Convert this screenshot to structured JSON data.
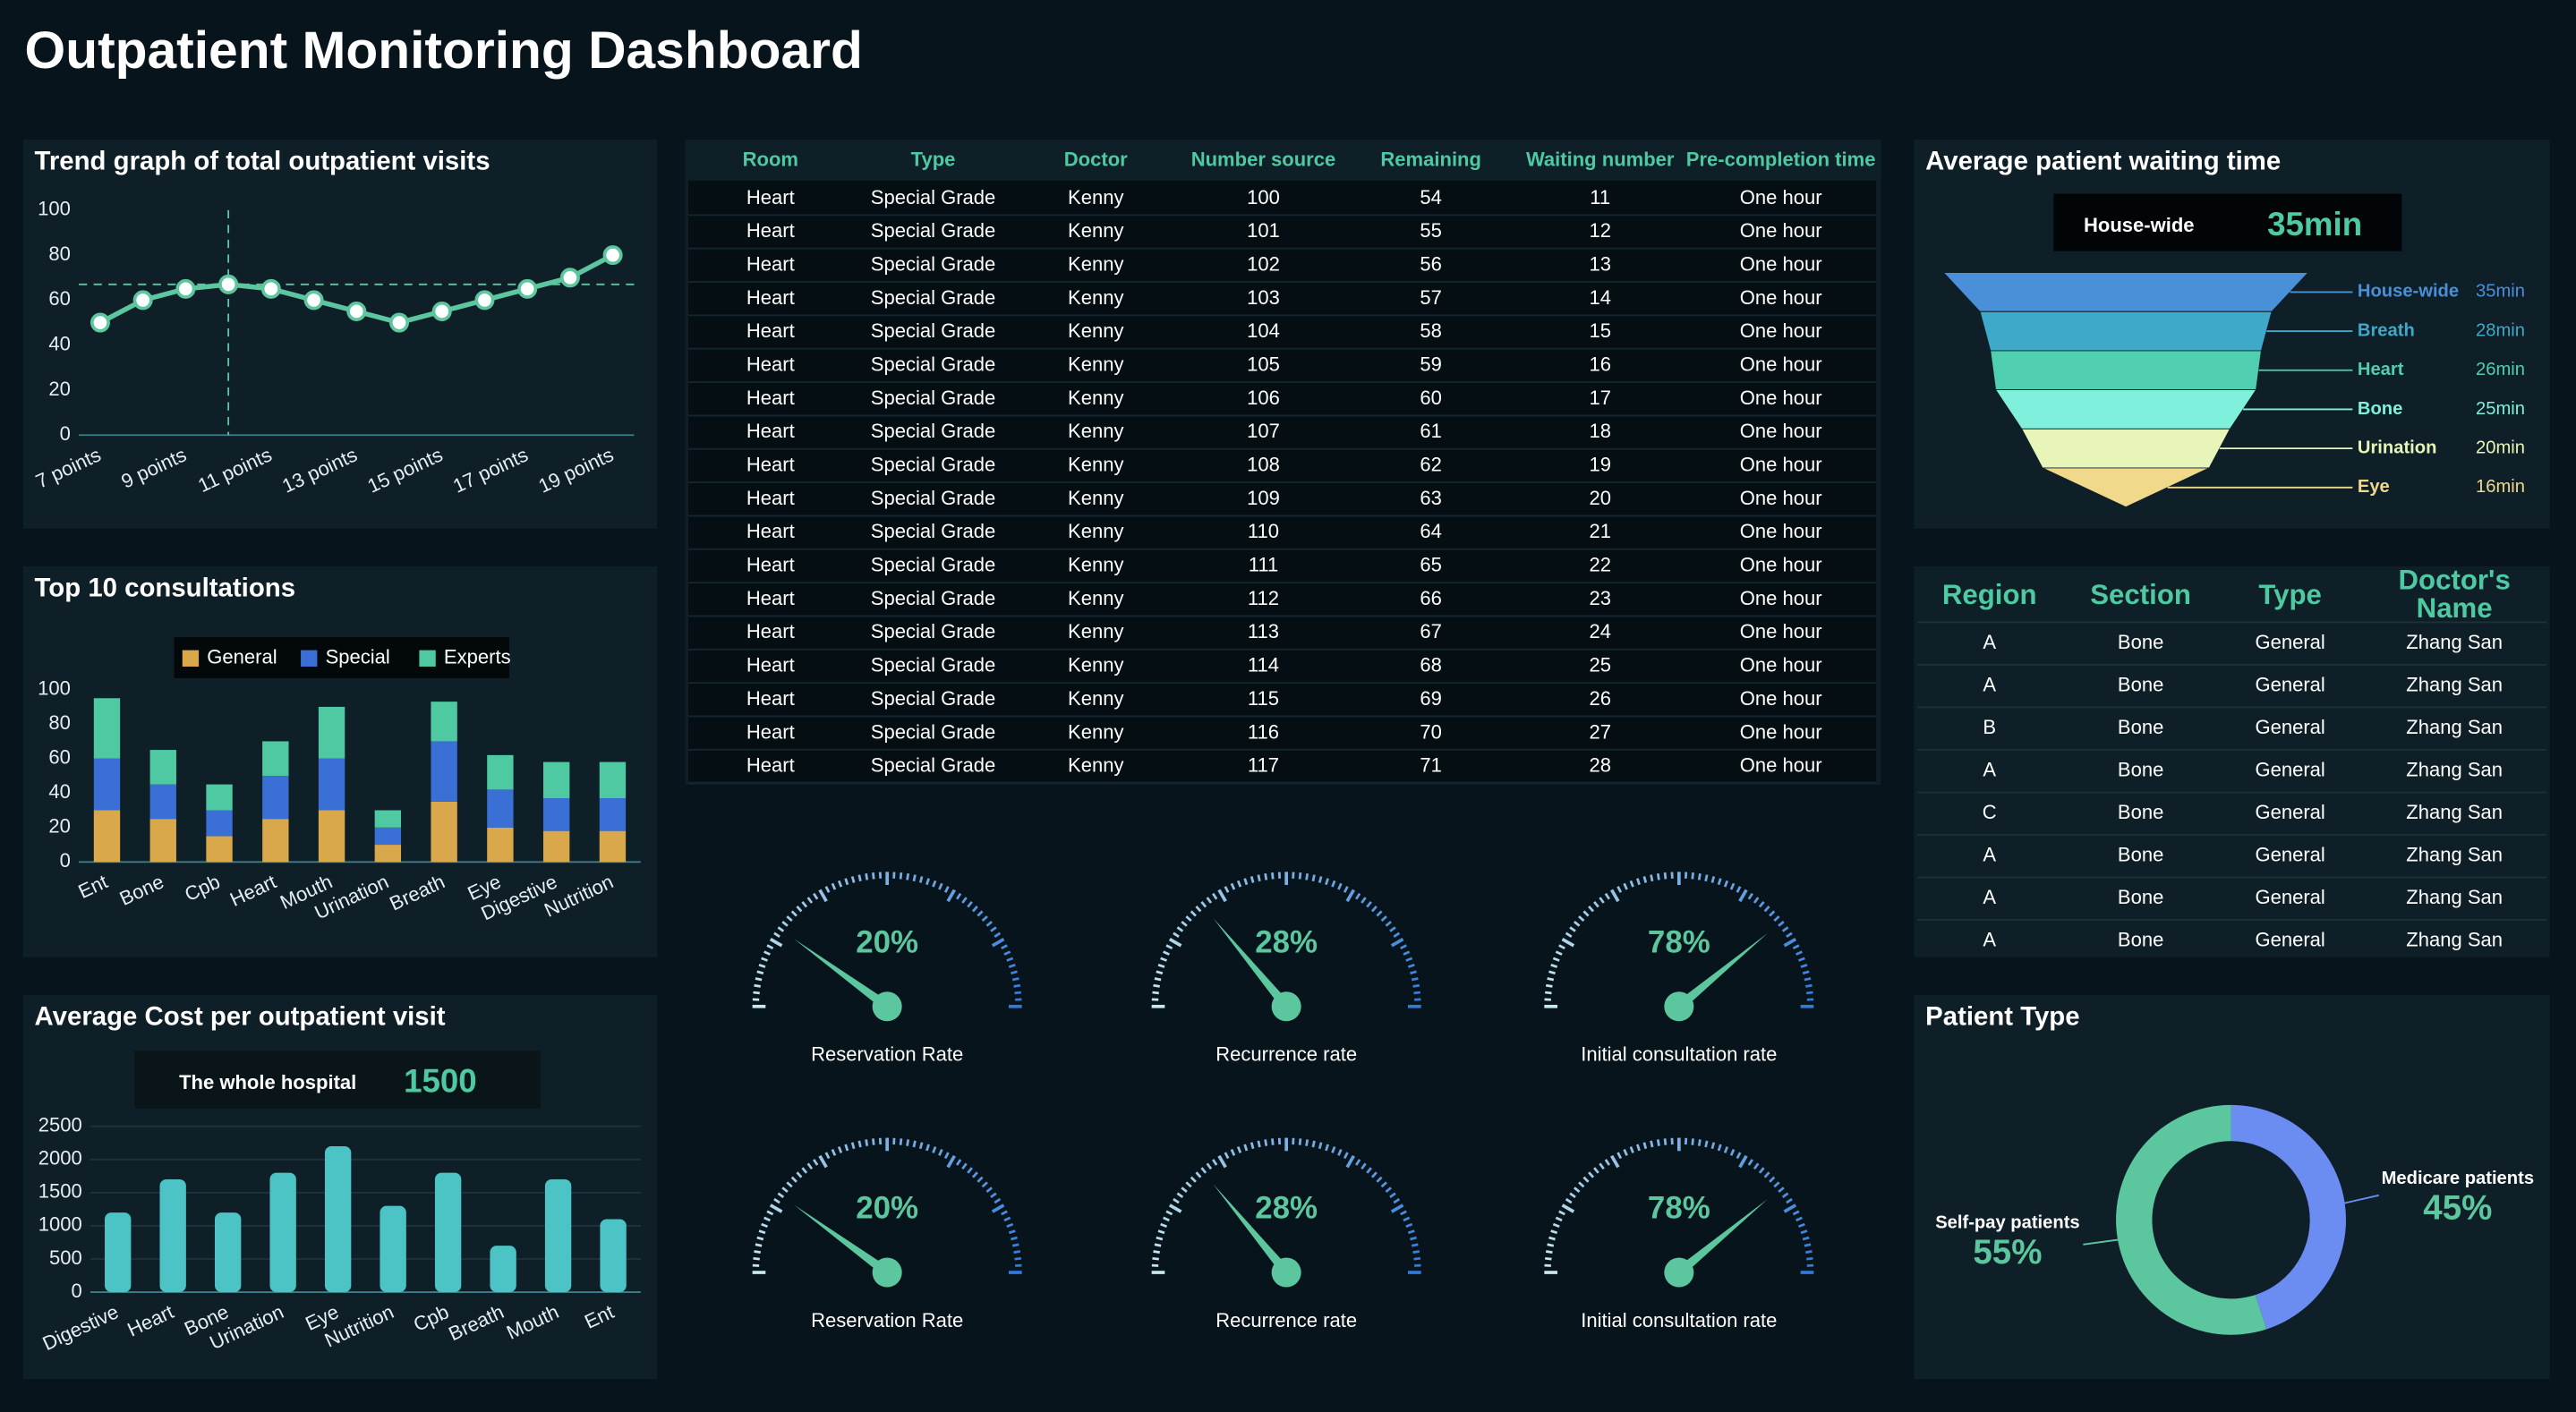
{
  "title": "Outpatient Monitoring Dashboard",
  "chart_data": [
    {
      "type": "line",
      "title": "Trend graph of total outpatient visits",
      "categories": [
        "7 points",
        null,
        "9 points",
        null,
        "11 points",
        null,
        "13 points",
        null,
        "15 points",
        null,
        "17 points",
        null,
        "19 points"
      ],
      "values": [
        50,
        60,
        65,
        67,
        65,
        60,
        55,
        50,
        55,
        60,
        65,
        70,
        80
      ],
      "color": "#5cc79e",
      "ylim": [
        0,
        100
      ],
      "yticks": [
        0,
        20,
        40,
        60,
        80,
        100
      ],
      "crosshair_index": 3
    },
    {
      "type": "stacked_bar",
      "title": "Top 10 consultations",
      "categories": [
        "Ent",
        "Bone",
        "Cpb",
        "Heart",
        "Mouth",
        "Urination",
        "Breath",
        "Eye",
        "Digestive",
        "Nutrition"
      ],
      "series": [
        {
          "name": "General",
          "color": "#d9a84a",
          "values": [
            30,
            25,
            15,
            25,
            30,
            10,
            35,
            20,
            18,
            18
          ]
        },
        {
          "name": "Special",
          "color": "#3a6fd6",
          "values": [
            30,
            20,
            15,
            25,
            30,
            10,
            35,
            22,
            19,
            19
          ]
        },
        {
          "name": "Experts",
          "color": "#4fc9a1",
          "values": [
            35,
            20,
            15,
            20,
            30,
            10,
            23,
            20,
            21,
            21
          ]
        }
      ],
      "ylim": [
        0,
        100
      ],
      "yticks": [
        0,
        20,
        40,
        60,
        80,
        100
      ],
      "legend": "top"
    },
    {
      "type": "bar",
      "title": "Average Cost per outpatient visit",
      "summary": {
        "label": "The whole hospital",
        "value": 1500
      },
      "categories": [
        "Digestive",
        "Heart",
        "Bone",
        "Urination",
        "Eye",
        "Nutrition",
        "Cpb",
        "Breath",
        "Mouth",
        "Ent"
      ],
      "values": [
        1200,
        1700,
        1200,
        1800,
        2200,
        1300,
        1800,
        700,
        1700,
        1100
      ],
      "color": "#4cc3c4",
      "ylim": [
        0,
        2500
      ],
      "yticks": [
        0,
        500,
        1000,
        1500,
        2000,
        2500
      ],
      "grid": true
    },
    {
      "type": "funnel",
      "title": "Average patient waiting time",
      "summary": {
        "label": "House-wide",
        "value": "35min"
      },
      "categories": [
        "House-wide",
        "Breath",
        "Heart",
        "Bone",
        "Urination",
        "Eye"
      ],
      "values": [
        35,
        28,
        26,
        25,
        20,
        16
      ],
      "value_labels": [
        "35min",
        "28min",
        "26min",
        "25min",
        "20min",
        "16min"
      ],
      "colors": [
        "#4a90d9",
        "#3fa9c9",
        "#4fcfb0",
        "#7ff0dc",
        "#e8f5b8",
        "#f0d98a"
      ]
    },
    {
      "type": "gauge",
      "range": [
        0,
        100
      ],
      "categories": [
        "Reservation Rate",
        "Recurrence rate",
        "Initial consultation rate",
        "Reservation Rate",
        "Recurrence rate",
        "Initial consultation rate"
      ],
      "values": [
        20,
        28,
        78,
        20,
        28,
        78
      ],
      "value_labels": [
        "20%",
        "28%",
        "78%",
        "20%",
        "28%",
        "78%"
      ],
      "color": "#5cc79e"
    },
    {
      "type": "donut",
      "title": "Patient Type",
      "categories": [
        "Medicare patients",
        "Self-pay patients"
      ],
      "values": [
        45,
        55
      ],
      "value_labels": [
        "45%",
        "55%"
      ],
      "colors": [
        "#6b8cf0",
        "#5cc79e"
      ]
    }
  ],
  "tables": [
    {
      "columns": [
        "Room",
        "Type",
        "Doctor",
        "Number source",
        "Remaining",
        "Waiting number",
        "Pre-completion time"
      ],
      "rows": [
        [
          "Heart",
          "Special Grade",
          "Kenny",
          100,
          54,
          11,
          "One hour"
        ],
        [
          "Heart",
          "Special Grade",
          "Kenny",
          101,
          55,
          12,
          "One hour"
        ],
        [
          "Heart",
          "Special Grade",
          "Kenny",
          102,
          56,
          13,
          "One hour"
        ],
        [
          "Heart",
          "Special Grade",
          "Kenny",
          103,
          57,
          14,
          "One hour"
        ],
        [
          "Heart",
          "Special Grade",
          "Kenny",
          104,
          58,
          15,
          "One hour"
        ],
        [
          "Heart",
          "Special Grade",
          "Kenny",
          105,
          59,
          16,
          "One hour"
        ],
        [
          "Heart",
          "Special Grade",
          "Kenny",
          106,
          60,
          17,
          "One hour"
        ],
        [
          "Heart",
          "Special Grade",
          "Kenny",
          107,
          61,
          18,
          "One hour"
        ],
        [
          "Heart",
          "Special Grade",
          "Kenny",
          108,
          62,
          19,
          "One hour"
        ],
        [
          "Heart",
          "Special Grade",
          "Kenny",
          109,
          63,
          20,
          "One hour"
        ],
        [
          "Heart",
          "Special Grade",
          "Kenny",
          110,
          64,
          21,
          "One hour"
        ],
        [
          "Heart",
          "Special Grade",
          "Kenny",
          111,
          65,
          22,
          "One hour"
        ],
        [
          "Heart",
          "Special Grade",
          "Kenny",
          112,
          66,
          23,
          "One hour"
        ],
        [
          "Heart",
          "Special Grade",
          "Kenny",
          113,
          67,
          24,
          "One hour"
        ],
        [
          "Heart",
          "Special Grade",
          "Kenny",
          114,
          68,
          25,
          "One hour"
        ],
        [
          "Heart",
          "Special Grade",
          "Kenny",
          115,
          69,
          26,
          "One hour"
        ],
        [
          "Heart",
          "Special Grade",
          "Kenny",
          116,
          70,
          27,
          "One hour"
        ],
        [
          "Heart",
          "Special Grade",
          "Kenny",
          117,
          71,
          28,
          "One hour"
        ]
      ]
    },
    {
      "columns": [
        "Region",
        "Section",
        "Type",
        "Doctor's Name"
      ],
      "rows": [
        [
          "A",
          "Bone",
          "General",
          "Zhang San"
        ],
        [
          "A",
          "Bone",
          "General",
          "Zhang San"
        ],
        [
          "B",
          "Bone",
          "General",
          "Zhang San"
        ],
        [
          "A",
          "Bone",
          "General",
          "Zhang San"
        ],
        [
          "C",
          "Bone",
          "General",
          "Zhang San"
        ],
        [
          "A",
          "Bone",
          "General",
          "Zhang San"
        ],
        [
          "A",
          "Bone",
          "General",
          "Zhang San"
        ],
        [
          "A",
          "Bone",
          "General",
          "Zhang San"
        ]
      ]
    }
  ]
}
